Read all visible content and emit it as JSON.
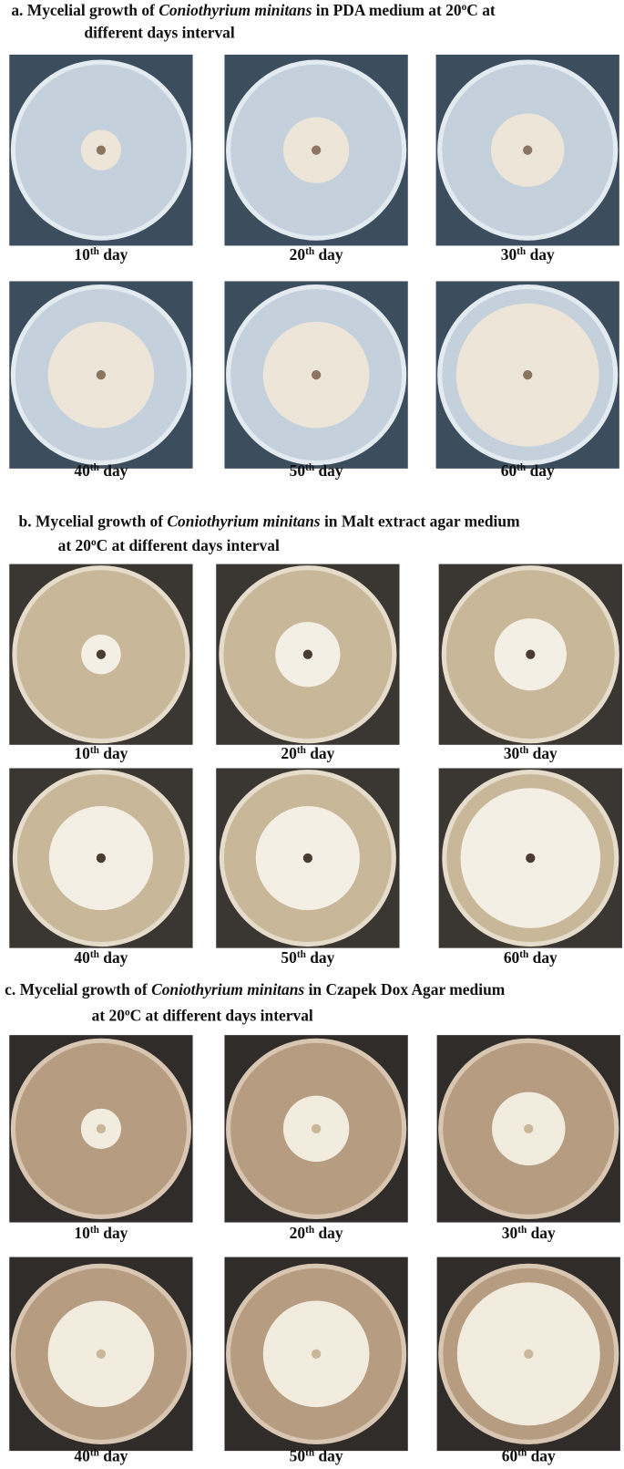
{
  "sections": [
    {
      "title_lines": [
        [
          {
            "text": "a. Mycelial growth of "
          },
          {
            "italic": "Coniothyrium minitans"
          },
          {
            "text": " in PDA medium at 20"
          },
          {
            "sup": "o"
          },
          {
            "text": "C at"
          }
        ],
        [
          {
            "text": "different days interval"
          }
        ]
      ],
      "rows": [
        [
          {
            "day": "10",
            "suffix": "th",
            "word": "day"
          },
          {
            "day": "20",
            "suffix": "th",
            "word": "day"
          },
          {
            "day": "30",
            "suffix": "th",
            "word": "day"
          }
        ],
        [
          {
            "day": "40",
            "suffix": "th",
            "word": "day"
          },
          {
            "day": "50",
            "suffix": "th",
            "word": "day"
          },
          {
            "day": "60",
            "suffix": "th",
            "word": "day"
          }
        ]
      ]
    },
    {
      "title_lines": [
        [
          {
            "text": "b. Mycelial growth of "
          },
          {
            "italic": "Coniothyrium minitans"
          },
          {
            "text": " in Malt extract agar medium"
          }
        ],
        [
          {
            "text": "at 20"
          },
          {
            "sup": "o"
          },
          {
            "text": "C at different days interval"
          }
        ]
      ],
      "rows": [
        [
          {
            "day": "10",
            "suffix": "th",
            "word": "day"
          },
          {
            "day": "20",
            "suffix": "th",
            "word": "day"
          },
          {
            "day": "30",
            "suffix": "th",
            "word": "day"
          }
        ],
        [
          {
            "day": "40",
            "suffix": "th",
            "word": "day"
          },
          {
            "day": "50",
            "suffix": "th",
            "word": "day"
          },
          {
            "day": "60",
            "suffix": "th",
            "word": "day"
          }
        ]
      ]
    },
    {
      "title_lines": [
        [
          {
            "text": "c. Mycelial growth of "
          },
          {
            "italic": "Coniothyrium minitans"
          },
          {
            "text": " in Czapek Dox Agar medium"
          }
        ],
        [
          {
            "text": "at 20"
          },
          {
            "sup": "o"
          },
          {
            "text": "C at different days interval"
          }
        ]
      ],
      "rows": [
        [
          {
            "day": "10",
            "suffix": "th",
            "word": "day"
          },
          {
            "day": "20",
            "suffix": "th",
            "word": "day"
          },
          {
            "day": "30",
            "suffix": "th",
            "word": "day"
          }
        ],
        [
          {
            "day": "40",
            "suffix": "th",
            "word": "day"
          },
          {
            "day": "50",
            "suffix": "th",
            "word": "day"
          },
          {
            "day": "60",
            "suffix": "th",
            "word": "day"
          }
        ]
      ]
    }
  ]
}
